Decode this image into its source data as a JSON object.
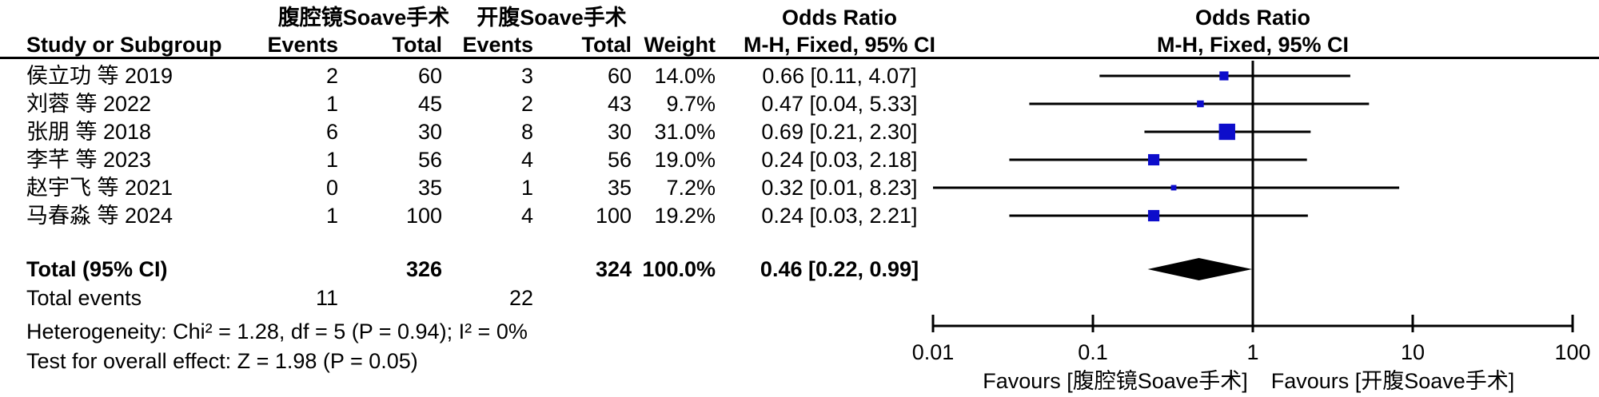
{
  "colors": {
    "square_blue": "#0d0dcb",
    "ink": "#000000"
  },
  "table": {
    "group1_header": "腹腔镜Soave手术",
    "group2_header": "开腹Soave手术",
    "or_header": "Odds Ratio",
    "method_header": "M-H, Fixed, 95% CI",
    "col_study": "Study or Subgroup",
    "col_events": "Events",
    "col_total": "Total",
    "col_weight": "Weight",
    "rows": [
      {
        "study": "侯立功 等 2019",
        "events1": "2",
        "total1": "60",
        "events2": "3",
        "total2": "60",
        "weight": "14.0%",
        "ci": "0.66 [0.11, 4.07]"
      },
      {
        "study": "刘蓉 等 2022",
        "events1": "1",
        "total1": "45",
        "events2": "2",
        "total2": "43",
        "weight": "9.7%",
        "ci": "0.47 [0.04, 5.33]"
      },
      {
        "study": "张朋 等 2018",
        "events1": "6",
        "total1": "30",
        "events2": "8",
        "total2": "30",
        "weight": "31.0%",
        "ci": "0.69 [0.21, 2.30]"
      },
      {
        "study": "李芊 等 2023",
        "events1": "1",
        "total1": "56",
        "events2": "4",
        "total2": "56",
        "weight": "19.0%",
        "ci": "0.24 [0.03, 2.18]"
      },
      {
        "study": "赵宇飞 等 2021",
        "events1": "0",
        "total1": "35",
        "events2": "1",
        "total2": "35",
        "weight": "7.2%",
        "ci": "0.32 [0.01, 8.23]"
      },
      {
        "study": "马春淼 等 2024",
        "events1": "1",
        "total1": "100",
        "events2": "4",
        "total2": "100",
        "weight": "19.2%",
        "ci": "0.24 [0.03, 2.21]"
      }
    ],
    "total_row": {
      "label": "Total (95% CI)",
      "total1": "326",
      "total2": "324",
      "weight": "100.0%",
      "ci": "0.46 [0.22, 0.99]"
    },
    "total_events_row": {
      "label": "Total events",
      "events1": "11",
      "events2": "22"
    },
    "heterogeneity": "Heterogeneity: Chi² = 1.28, df = 5 (P = 0.94); I² = 0%",
    "overall_effect": "Test for overall effect: Z = 1.98 (P = 0.05)"
  },
  "chart_data": {
    "type": "forest",
    "x_scale": "log10",
    "x_ticks": [
      0.01,
      0.1,
      1,
      10,
      100
    ],
    "x_tick_labels": [
      "0.01",
      "0.1",
      "1",
      "10",
      "100"
    ],
    "xlim": [
      0.01,
      100
    ],
    "null_value": 1,
    "effect_label": "Odds Ratio",
    "method_label": "M-H, Fixed, 95% CI",
    "studies": [
      {
        "name": "侯立功 等 2019",
        "or": 0.66,
        "lo": 0.11,
        "hi": 4.07,
        "weight": 14.0
      },
      {
        "name": "刘蓉 等 2022",
        "or": 0.47,
        "lo": 0.04,
        "hi": 5.33,
        "weight": 9.7
      },
      {
        "name": "张朋 等 2018",
        "or": 0.69,
        "lo": 0.21,
        "hi": 2.3,
        "weight": 31.0
      },
      {
        "name": "李芊 等 2023",
        "or": 0.24,
        "lo": 0.03,
        "hi": 2.18,
        "weight": 19.0
      },
      {
        "name": "赵宇飞 等 2021",
        "or": 0.32,
        "lo": 0.01,
        "hi": 8.23,
        "weight": 7.2
      },
      {
        "name": "马春淼 等 2024",
        "or": 0.24,
        "lo": 0.03,
        "hi": 2.21,
        "weight": 19.2
      }
    ],
    "total": {
      "or": 0.46,
      "lo": 0.22,
      "hi": 0.99
    },
    "favours_left": "Favours [腹腔镜Soave手术]",
    "favours_right": "Favours [开腹Soave手术]"
  }
}
